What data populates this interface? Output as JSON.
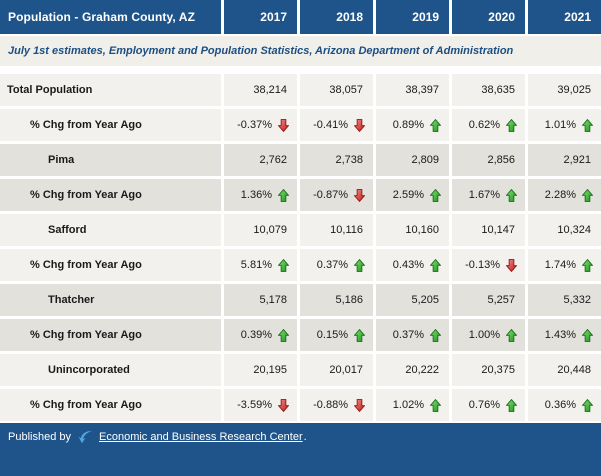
{
  "header": {
    "title": "Population - Graham County, AZ",
    "years": [
      "2017",
      "2018",
      "2019",
      "2020",
      "2021"
    ]
  },
  "subtitle": "July 1st estimates, Employment and Population Statistics, Arizona Department of Administration",
  "table": {
    "rows": [
      {
        "label": "Total Population",
        "indent": 0,
        "type": "value",
        "values": [
          "38,214",
          "38,057",
          "38,397",
          "38,635",
          "39,025"
        ]
      },
      {
        "label": "% Chg from Year Ago",
        "indent": 1,
        "type": "pct",
        "values": [
          {
            "text": "-0.37%",
            "dir": "down"
          },
          {
            "text": "-0.41%",
            "dir": "down"
          },
          {
            "text": "0.89%",
            "dir": "up"
          },
          {
            "text": "0.62%",
            "dir": "up"
          },
          {
            "text": "1.01%",
            "dir": "up"
          }
        ]
      },
      {
        "label": "Pima",
        "indent": 2,
        "type": "value",
        "values": [
          "2,762",
          "2,738",
          "2,809",
          "2,856",
          "2,921"
        ]
      },
      {
        "label": "% Chg from Year Ago",
        "indent": 1,
        "type": "pct",
        "values": [
          {
            "text": "1.36%",
            "dir": "up"
          },
          {
            "text": "-0.87%",
            "dir": "down"
          },
          {
            "text": "2.59%",
            "dir": "up"
          },
          {
            "text": "1.67%",
            "dir": "up"
          },
          {
            "text": "2.28%",
            "dir": "up"
          }
        ]
      },
      {
        "label": "Safford",
        "indent": 2,
        "type": "value",
        "values": [
          "10,079",
          "10,116",
          "10,160",
          "10,147",
          "10,324"
        ]
      },
      {
        "label": "% Chg from Year Ago",
        "indent": 1,
        "type": "pct",
        "values": [
          {
            "text": "5.81%",
            "dir": "up"
          },
          {
            "text": "0.37%",
            "dir": "up"
          },
          {
            "text": "0.43%",
            "dir": "up"
          },
          {
            "text": "-0.13%",
            "dir": "down"
          },
          {
            "text": "1.74%",
            "dir": "up"
          }
        ]
      },
      {
        "label": "Thatcher",
        "indent": 2,
        "type": "value",
        "values": [
          "5,178",
          "5,186",
          "5,205",
          "5,257",
          "5,332"
        ]
      },
      {
        "label": "% Chg from Year Ago",
        "indent": 1,
        "type": "pct",
        "values": [
          {
            "text": "0.39%",
            "dir": "up"
          },
          {
            "text": "0.15%",
            "dir": "up"
          },
          {
            "text": "0.37%",
            "dir": "up"
          },
          {
            "text": "1.00%",
            "dir": "up"
          },
          {
            "text": "1.43%",
            "dir": "up"
          }
        ]
      },
      {
        "label": "Unincorporated",
        "indent": 2,
        "type": "value",
        "values": [
          "20,195",
          "20,017",
          "20,222",
          "20,375",
          "20,448"
        ]
      },
      {
        "label": "% Chg from Year Ago",
        "indent": 1,
        "type": "pct",
        "values": [
          {
            "text": "-3.59%",
            "dir": "down"
          },
          {
            "text": "-0.88%",
            "dir": "down"
          },
          {
            "text": "1.02%",
            "dir": "up"
          },
          {
            "text": "0.76%",
            "dir": "up"
          },
          {
            "text": "0.36%",
            "dir": "up"
          }
        ]
      }
    ]
  },
  "footer": {
    "prefix": "Published by",
    "link_text": "Economic and Business Research Center",
    "suffix": "."
  },
  "colors": {
    "header_bg": "#1F548A",
    "band_light": "#F2F1ED",
    "band_dark": "#E2E1DC",
    "subtitle_bg": "#F0EFEA",
    "subtitle_text": "#1B4E82",
    "text": "#1A1A1A",
    "link": "#FFFFFF",
    "swoosh": "#4FA6E0",
    "arrow_up_light": "#8CDC7C",
    "arrow_up_dark": "#189418",
    "arrow_up_stroke": "#0F6B0F",
    "arrow_down_light": "#F0908A",
    "arrow_down_dark": "#C01818",
    "arrow_down_stroke": "#8A1010"
  }
}
